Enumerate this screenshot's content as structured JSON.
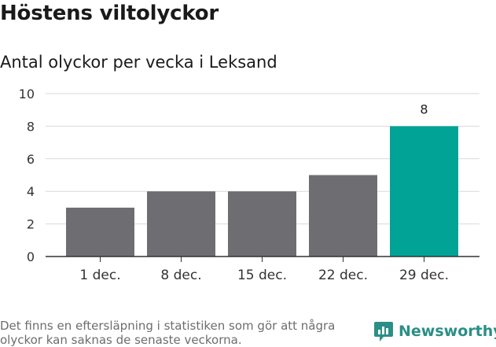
{
  "title": "Höstens viltolyckor",
  "subtitle": "Antal olyckor per vecka i Leksand",
  "chart_data": {
    "type": "bar",
    "title": "Antal olyckor per vecka i Leksand",
    "categories": [
      "1 dec.",
      "8 dec.",
      "15 dec.",
      "22 dec.",
      "29 dec."
    ],
    "values": [
      3,
      4,
      4,
      5,
      8
    ],
    "highlight_index": 4,
    "highlight_label": "8",
    "ylim": [
      0,
      10
    ],
    "yticks": [
      0,
      2,
      4,
      6,
      8,
      10
    ],
    "xlabel": "",
    "ylabel": "",
    "grid": true,
    "colors": {
      "default": "#6e6d72",
      "highlight": "#00a396",
      "grid": "#d9d9d9",
      "axis": "#333333"
    }
  },
  "footnote": "Det finns en eftersläpning i statistiken som gör att några olyckor kan saknas de senaste veckorna.",
  "brand": {
    "name": "Newsworthy",
    "icon": "newsworthy-logo-icon",
    "color": "#2b8f86"
  }
}
